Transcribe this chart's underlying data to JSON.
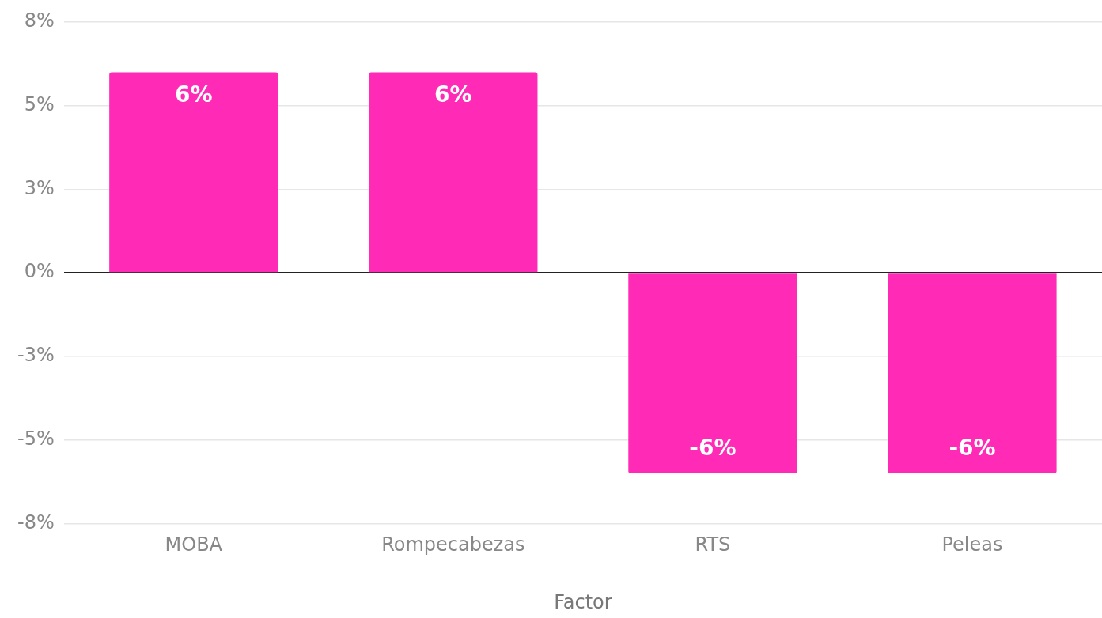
{
  "chart_data": {
    "type": "bar",
    "xlabel": "Factor",
    "categories": [
      "MOBA",
      "Rompecabezas",
      "RTS",
      "Peleas"
    ],
    "series": [
      {
        "color": "#ff2bb7",
        "values": [
          6,
          6,
          -6,
          -6
        ],
        "value_labels": [
          "6%",
          "6%",
          "-6%",
          "-6%"
        ]
      }
    ],
    "ylim": [
      -7.5,
      7.5
    ],
    "yticks": [
      {
        "value": 7.5,
        "label": "8%"
      },
      {
        "value": 5,
        "label": "5%"
      },
      {
        "value": 2.5,
        "label": "3%"
      },
      {
        "value": 0,
        "label": "0%"
      },
      {
        "value": -2.5,
        "label": "-3%"
      },
      {
        "value": -5,
        "label": "-5%"
      },
      {
        "value": -7.5,
        "label": "-8%"
      }
    ],
    "grid": "y",
    "legend": false
  }
}
